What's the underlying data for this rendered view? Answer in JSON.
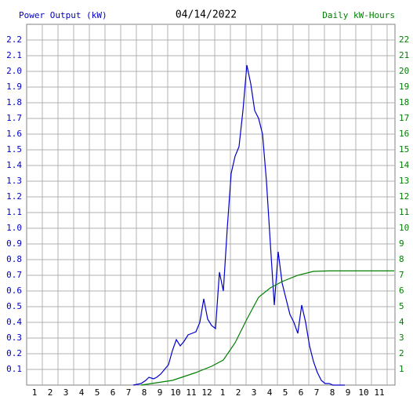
{
  "chart_data": {
    "type": "line",
    "title": "04/14/2022",
    "ylabel": "Power Output (kW)",
    "y2label": "Daily kW-Hours",
    "xlim": [
      0.5,
      24
    ],
    "xticks": [
      1,
      2,
      3,
      4,
      5,
      6,
      7,
      8,
      9,
      10,
      11,
      12,
      {
        "value": 13,
        "label": "1"
      },
      {
        "value": 14,
        "label": "2"
      },
      {
        "value": 15,
        "label": "3"
      },
      {
        "value": 16,
        "label": "4"
      },
      {
        "value": 17,
        "label": "5"
      },
      {
        "value": 18,
        "label": "6"
      },
      {
        "value": 19,
        "label": "7"
      },
      {
        "value": 20,
        "label": "8"
      },
      {
        "value": 21,
        "label": "9"
      },
      {
        "value": 22,
        "label": "10"
      },
      {
        "value": 23,
        "label": "11"
      }
    ],
    "ylim": [
      0,
      2.3
    ],
    "yticks": [
      0.1,
      0.2,
      0.3,
      0.4,
      0.5,
      0.6,
      0.7,
      0.8,
      0.9,
      {
        "value": 1,
        "label": "1.0"
      },
      1.1,
      1.2,
      1.3,
      1.4,
      1.5,
      1.6,
      1.7,
      1.8,
      1.9,
      {
        "value": 2,
        "label": "2.0"
      },
      2.1,
      2.2
    ],
    "y2lim": [
      0,
      23
    ],
    "y2ticks": [
      1,
      2,
      3,
      4,
      5,
      6,
      7,
      8,
      9,
      10,
      11,
      12,
      13,
      14,
      15,
      16,
      17,
      18,
      19,
      20,
      21,
      22
    ],
    "grid": true,
    "series": [
      {
        "name": "Power Output (kW)",
        "color": "#0000cc",
        "x": [
          7.3,
          7.8,
          8.1,
          8.3,
          8.6,
          8.8,
          9.05,
          9.3,
          9.55,
          9.8,
          10.05,
          10.3,
          10.55,
          10.8,
          11.05,
          11.3,
          11.55,
          11.8,
          12.05,
          12.3,
          12.55,
          12.8,
          13.05,
          13.3,
          13.55,
          13.8,
          14.05,
          14.3,
          14.55,
          14.8,
          15.05,
          15.3,
          15.55,
          15.8,
          16.05,
          16.3,
          16.55,
          16.8,
          17.05,
          17.3,
          17.55,
          17.8,
          18.05,
          18.3,
          18.55,
          18.8,
          19.05,
          19.3,
          19.55,
          19.8,
          20.05,
          20.8
        ],
        "values": [
          0,
          0.01,
          0.03,
          0.05,
          0.04,
          0.05,
          0.07,
          0.1,
          0.13,
          0.22,
          0.29,
          0.25,
          0.28,
          0.32,
          0.33,
          0.34,
          0.4,
          0.55,
          0.42,
          0.38,
          0.36,
          0.72,
          0.6,
          1.0,
          1.35,
          1.46,
          1.52,
          1.75,
          2.04,
          1.92,
          1.75,
          1.7,
          1.6,
          1.3,
          0.9,
          0.51,
          0.85,
          0.65,
          0.55,
          0.45,
          0.4,
          0.33,
          0.51,
          0.4,
          0.25,
          0.15,
          0.08,
          0.03,
          0.01,
          0.01,
          0,
          0
        ]
      },
      {
        "name": "Daily kW-Hours",
        "color": "#008000",
        "axis": "y2",
        "x": [
          7.8,
          9.8,
          11.3,
          12.3,
          13.05,
          13.8,
          14.55,
          15.3,
          16.05,
          16.8,
          17.8,
          18.8,
          19.8,
          23.95
        ],
        "values": [
          0,
          0.3,
          0.8,
          1.2,
          1.6,
          2.7,
          4.2,
          5.6,
          6.2,
          6.6,
          7.0,
          7.25,
          7.28,
          7.28
        ]
      }
    ]
  }
}
